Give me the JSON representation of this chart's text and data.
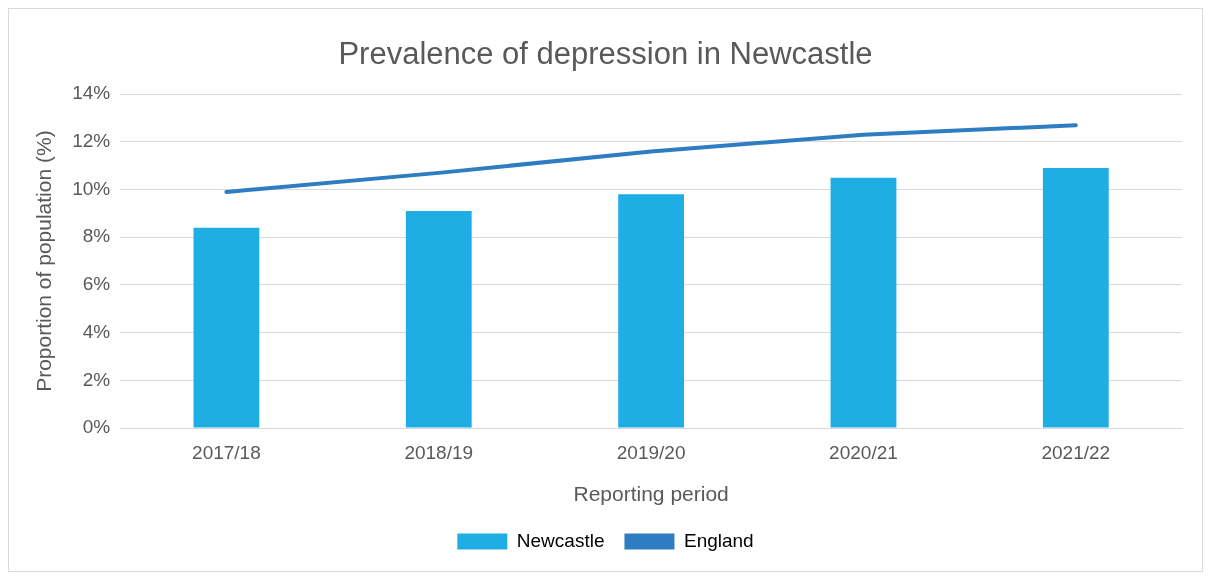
{
  "chart_data": {
    "type": "bar",
    "title": "Prevalence of depression in Newcastle",
    "xlabel": "Reporting period",
    "ylabel": "Proportion of population (%)",
    "categories": [
      "2017/18",
      "2018/19",
      "2019/20",
      "2020/21",
      "2021/22"
    ],
    "series": [
      {
        "name": "Newcastle",
        "color": "#1eaee4",
        "values": [
          8.4,
          9.1,
          9.8,
          10.5,
          10.9
        ]
      },
      {
        "name": "England",
        "type": "line",
        "color": "#2e7dc2",
        "values": [
          9.9,
          10.7,
          11.6,
          12.3,
          12.7
        ]
      }
    ],
    "ylim": [
      0,
      14
    ],
    "yticks": [
      {
        "value": 0,
        "label": "0%"
      },
      {
        "value": 2,
        "label": "2%"
      },
      {
        "value": 4,
        "label": "4%"
      },
      {
        "value": 6,
        "label": "6%"
      },
      {
        "value": 8,
        "label": "8%"
      },
      {
        "value": 10,
        "label": "10%"
      },
      {
        "value": 12,
        "label": "12%"
      },
      {
        "value": 14,
        "label": "14%"
      }
    ],
    "grid": "y",
    "legend": "bottom",
    "marker": "none",
    "line_style": "solid"
  }
}
